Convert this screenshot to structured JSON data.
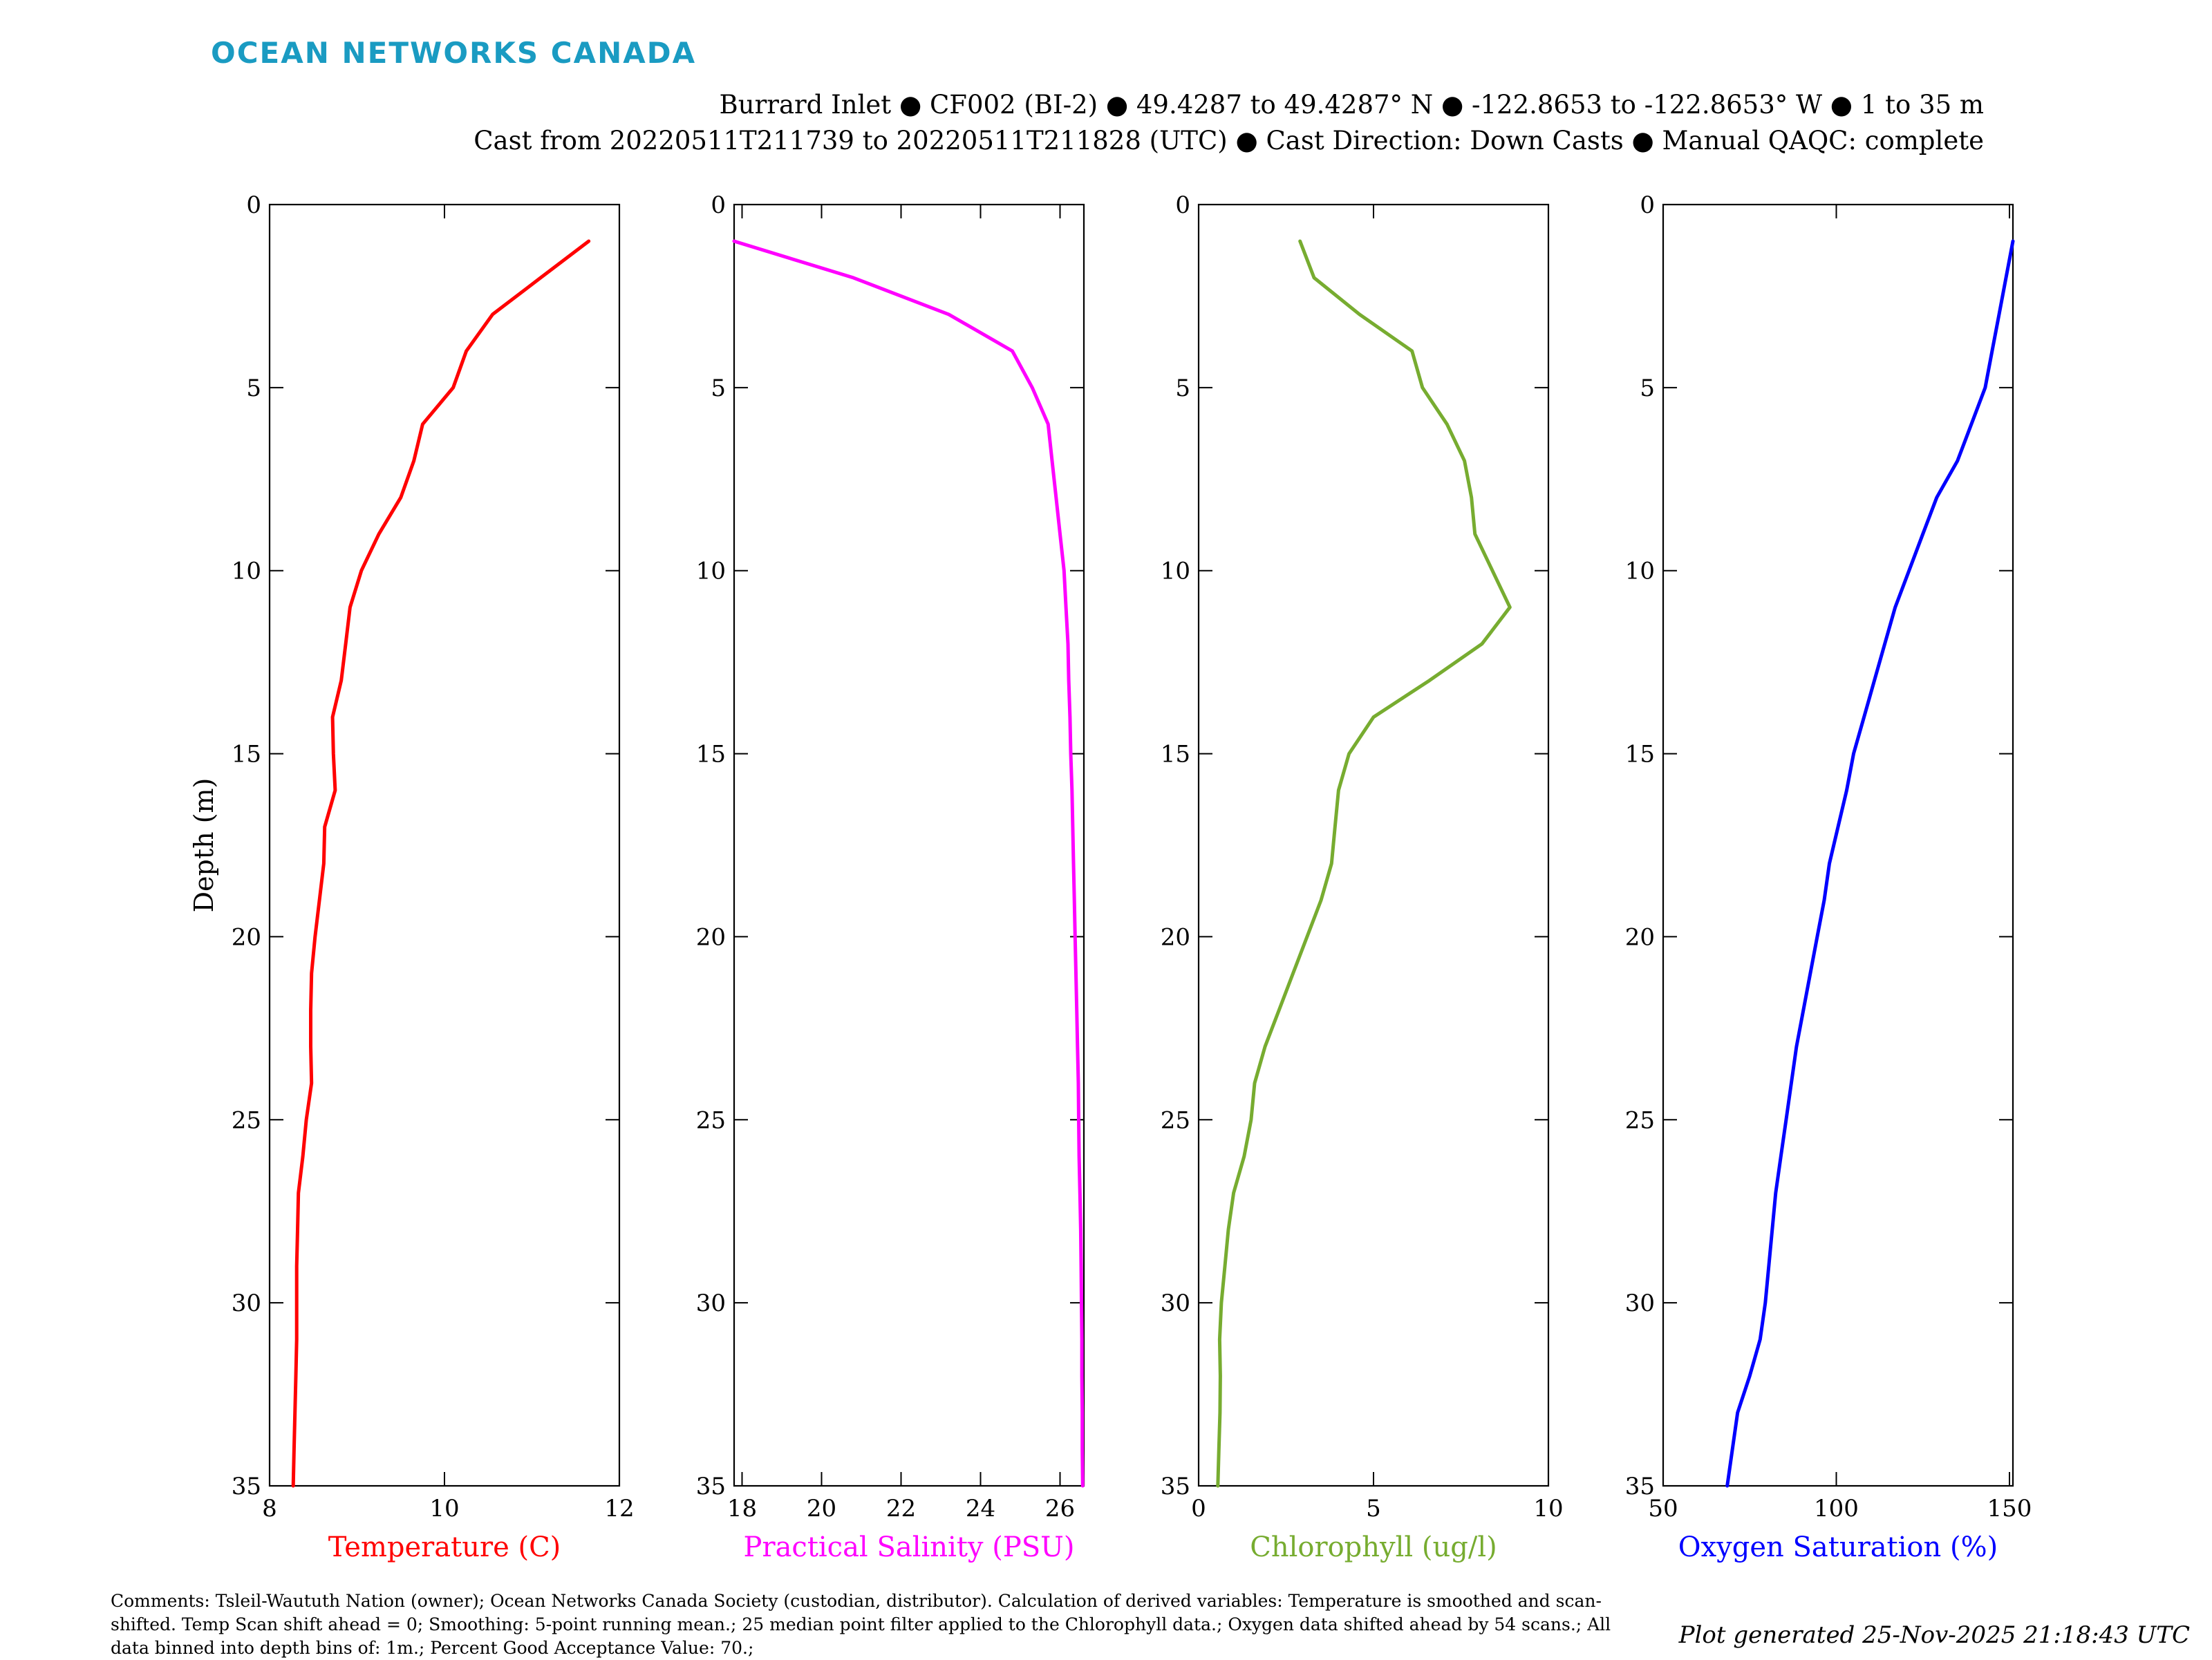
{
  "header": {
    "logo_text": "OCEAN NETWORKS CANADA",
    "title_line1": "Burrard Inlet ● CF002 (BI-2) ● 49.4287 to 49.4287° N ● -122.8653 to -122.8653° W ● 1 to 35 m",
    "title_line2": "Cast from 20220511T211739 to 20220511T211828 (UTC) ● Cast Direction: Down Casts ● Manual QAQC: complete"
  },
  "chart_data": [
    {
      "type": "line",
      "xlabel": "Temperature (C)",
      "ylabel": "Depth (m)",
      "color": "#ff0000",
      "xlim": [
        8,
        12
      ],
      "ylim": [
        35,
        0
      ],
      "xticks": [
        8,
        10,
        12
      ],
      "yticks": [
        0,
        5,
        10,
        15,
        20,
        25,
        30,
        35
      ],
      "x": [
        11.65,
        11.1,
        10.55,
        10.25,
        10.1,
        9.75,
        9.65,
        9.5,
        9.25,
        9.05,
        8.92,
        8.87,
        8.82,
        8.72,
        8.73,
        8.75,
        8.63,
        8.62,
        8.57,
        8.52,
        8.48,
        8.47,
        8.47,
        8.48,
        8.42,
        8.38,
        8.33,
        8.32,
        8.31,
        8.31,
        8.31,
        8.3,
        8.29,
        8.28,
        8.27
      ],
      "y": [
        1,
        2,
        3,
        4,
        5,
        6,
        7,
        8,
        9,
        10,
        11,
        12,
        13,
        14,
        15,
        16,
        17,
        18,
        19,
        20,
        21,
        22,
        23,
        24,
        25,
        26,
        27,
        28,
        29,
        30,
        31,
        32,
        33,
        34,
        35
      ]
    },
    {
      "type": "line",
      "xlabel": "Practical Salinity (PSU)",
      "ylabel": "",
      "color": "#ff00ff",
      "xlim": [
        17.8,
        26.6
      ],
      "ylim": [
        35,
        0
      ],
      "xticks": [
        18,
        20,
        22,
        24,
        26
      ],
      "yticks": [
        0,
        5,
        10,
        15,
        20,
        25,
        30,
        35
      ],
      "x": [
        17.8,
        20.8,
        23.2,
        24.8,
        25.3,
        25.7,
        25.8,
        25.9,
        26.0,
        26.1,
        26.15,
        26.2,
        26.22,
        26.25,
        26.27,
        26.3,
        26.32,
        26.34,
        26.36,
        26.38,
        26.4,
        26.42,
        26.44,
        26.46,
        26.47,
        26.48,
        26.5,
        26.52,
        26.53,
        26.54,
        26.55,
        26.55,
        26.56,
        26.56,
        26.57
      ],
      "y": [
        1,
        2,
        3,
        4,
        5,
        6,
        7,
        8,
        9,
        10,
        11,
        12,
        13,
        14,
        15,
        16,
        17,
        18,
        19,
        20,
        21,
        22,
        23,
        24,
        25,
        26,
        27,
        28,
        29,
        30,
        31,
        32,
        33,
        34,
        35
      ]
    },
    {
      "type": "line",
      "xlabel": "Chlorophyll (ug/l)",
      "ylabel": "",
      "color": "#77ac30",
      "xlim": [
        0,
        10
      ],
      "ylim": [
        35,
        0
      ],
      "xticks": [
        0,
        5,
        10
      ],
      "yticks": [
        0,
        5,
        10,
        15,
        20,
        25,
        30,
        35
      ],
      "x": [
        2.9,
        3.3,
        4.6,
        6.1,
        6.4,
        7.1,
        7.6,
        7.8,
        7.9,
        8.4,
        8.9,
        8.1,
        6.6,
        5.0,
        4.3,
        4.0,
        3.9,
        3.8,
        3.5,
        3.1,
        2.7,
        2.3,
        1.9,
        1.6,
        1.5,
        1.3,
        1.0,
        0.85,
        0.75,
        0.65,
        0.6,
        0.62,
        0.61,
        0.58,
        0.55
      ],
      "y": [
        1,
        2,
        3,
        4,
        5,
        6,
        7,
        8,
        9,
        10,
        11,
        12,
        13,
        14,
        15,
        16,
        17,
        18,
        19,
        20,
        21,
        22,
        23,
        24,
        25,
        26,
        27,
        28,
        29,
        30,
        31,
        32,
        33,
        34,
        35
      ]
    },
    {
      "type": "line",
      "xlabel": "Oxygen Saturation (%)",
      "ylabel": "",
      "color": "#0000ff",
      "xlim": [
        50,
        151
      ],
      "ylim": [
        35,
        0
      ],
      "xticks": [
        50,
        100,
        150
      ],
      "yticks": [
        0,
        5,
        10,
        15,
        20,
        25,
        30,
        35
      ],
      "x": [
        151,
        149,
        147,
        145,
        143,
        139,
        135,
        129,
        125,
        121,
        117,
        114,
        111,
        108,
        105,
        103,
        100.5,
        98,
        96.5,
        94.5,
        92.5,
        90.5,
        88.5,
        87,
        85.5,
        84,
        82.5,
        81.5,
        80.5,
        79.5,
        78,
        75,
        71.5,
        70,
        68.5
      ],
      "y": [
        1,
        2,
        3,
        4,
        5,
        6,
        7,
        8,
        9,
        10,
        11,
        12,
        13,
        14,
        15,
        16,
        17,
        18,
        19,
        20,
        21,
        22,
        23,
        24,
        25,
        26,
        27,
        28,
        29,
        30,
        31,
        32,
        33,
        34,
        35
      ]
    }
  ],
  "footer": {
    "comments": "Comments: Tsleil-Waututh Nation (owner); Ocean Networks Canada Society (custodian, distributor). Calculation of derived variables: Temperature is smoothed and scan-shifted. Temp Scan shift ahead = 0; Smoothing: 5-point running mean.; 25 median point filter applied to the Chlorophyll data.; Oxygen data shifted ahead by 54 scans.; All data binned into depth bins of: 1m.; Percent Good Acceptance Value: 70.;",
    "generated": "Plot generated 25-Nov-2025 21:18:43 UTC"
  }
}
